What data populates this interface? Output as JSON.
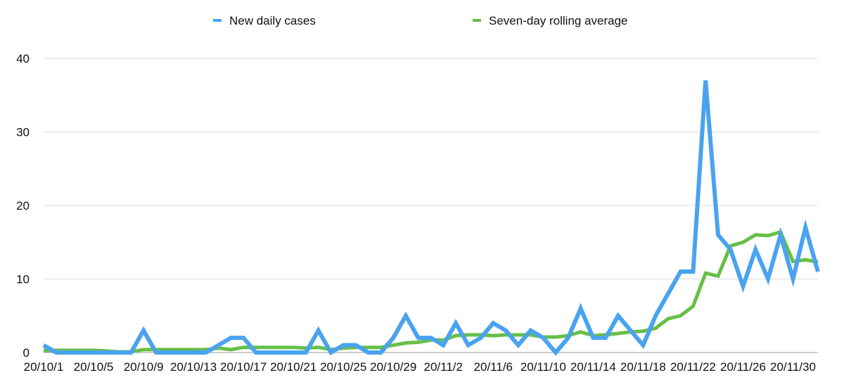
{
  "chart_data": {
    "type": "line",
    "title": "",
    "xlabel": "",
    "ylabel": "",
    "ylim": [
      0,
      40
    ],
    "y_ticks": [
      "0",
      "10",
      "20",
      "30",
      "40"
    ],
    "y_tick_values": [
      0,
      10,
      20,
      30,
      40
    ],
    "grid": true,
    "legend_position": "top-center",
    "x": [
      "20/10/1",
      "20/10/2",
      "20/10/3",
      "20/10/4",
      "20/10/5",
      "20/10/6",
      "20/10/7",
      "20/10/8",
      "20/10/9",
      "20/10/10",
      "20/10/11",
      "20/10/12",
      "20/10/13",
      "20/10/14",
      "20/10/15",
      "20/10/16",
      "20/10/17",
      "20/10/18",
      "20/10/19",
      "20/10/20",
      "20/10/21",
      "20/10/22",
      "20/10/23",
      "20/10/24",
      "20/10/25",
      "20/10/26",
      "20/10/27",
      "20/10/28",
      "20/10/29",
      "20/10/30",
      "20/10/31",
      "20/11/1",
      "20/11/2",
      "20/11/3",
      "20/11/4",
      "20/11/5",
      "20/11/6",
      "20/11/7",
      "20/11/8",
      "20/11/9",
      "20/11/10",
      "20/11/11",
      "20/11/12",
      "20/11/13",
      "20/11/14",
      "20/11/15",
      "20/11/16",
      "20/11/17",
      "20/11/18",
      "20/11/19",
      "20/11/20",
      "20/11/21",
      "20/11/22",
      "20/11/23",
      "20/11/24",
      "20/11/25",
      "20/11/26",
      "20/11/27",
      "20/11/28",
      "20/11/29",
      "20/11/30",
      "20/12/1",
      "20/12/2"
    ],
    "x_tick_labels": [
      "20/10/1",
      "20/10/5",
      "20/10/9",
      "20/10/13",
      "20/10/17",
      "20/10/21",
      "20/10/25",
      "20/10/29",
      "20/11/2",
      "20/11/6",
      "20/11/10",
      "20/11/14",
      "20/11/18",
      "20/11/22",
      "20/11/26",
      "20/11/30"
    ],
    "series": [
      {
        "name": "New daily cases",
        "color": "#4aa3f0",
        "values": [
          1,
          0,
          0,
          0,
          0,
          0,
          0,
          0,
          3,
          0,
          0,
          0,
          0,
          0,
          1,
          2,
          2,
          0,
          0,
          0,
          0,
          0,
          3,
          0,
          1,
          1,
          0,
          0,
          2,
          5,
          2,
          2,
          1,
          4,
          1,
          2,
          4,
          3,
          1,
          3,
          2,
          0,
          2,
          6,
          2,
          2,
          5,
          3,
          1,
          5,
          8,
          11,
          11,
          37,
          16,
          14,
          9,
          14,
          10,
          16,
          10,
          17,
          11
        ]
      },
      {
        "name": "Seven-day rolling average",
        "color": "#66bf47",
        "values": [
          0.3,
          0.3,
          0.3,
          0.3,
          0.3,
          0.2,
          0.1,
          0.1,
          0.4,
          0.4,
          0.4,
          0.4,
          0.4,
          0.4,
          0.6,
          0.4,
          0.7,
          0.7,
          0.7,
          0.7,
          0.7,
          0.6,
          0.7,
          0.4,
          0.6,
          0.7,
          0.7,
          0.7,
          1.0,
          1.3,
          1.4,
          1.7,
          1.7,
          2.3,
          2.4,
          2.4,
          2.3,
          2.4,
          2.4,
          2.4,
          2.1,
          2.1,
          2.3,
          2.8,
          2.3,
          2.4,
          2.6,
          2.8,
          2.9,
          3.3,
          4.6,
          5.0,
          6.3,
          10.8,
          10.4,
          14.5,
          15.0,
          16.0,
          15.9,
          16.4,
          12.4,
          12.6,
          12.3
        ]
      }
    ]
  }
}
